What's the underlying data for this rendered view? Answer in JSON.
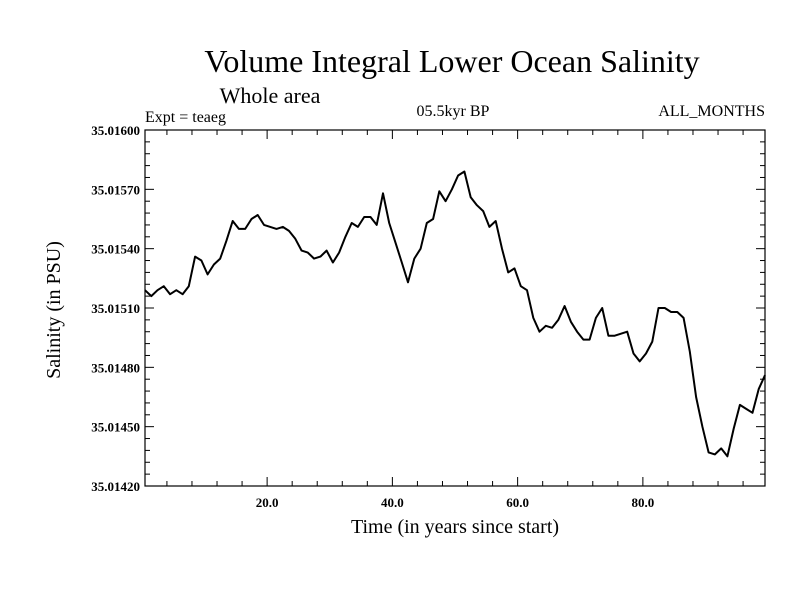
{
  "chart_data": {
    "type": "line",
    "title": "Volume Integral Lower Ocean Salinity",
    "subtitle": "Whole area",
    "experiment": "Expt = teaeg",
    "period": "05.5kyr BP",
    "months": "ALL_MONTHS",
    "xlabel": "Time (in years since start)",
    "ylabel": "Salinity (in PSU)",
    "xlim": [
      0.5,
      99.5
    ],
    "ylim": [
      35.0142,
      35.016
    ],
    "x_ticks": [
      20,
      40,
      60,
      80
    ],
    "x_tick_labels": [
      "20.0",
      "40.0",
      "60.0",
      "80.0"
    ],
    "y_ticks": [
      35.0142,
      35.0145,
      35.0148,
      35.0151,
      35.0154,
      35.0157,
      35.016
    ],
    "y_tick_labels": [
      "35.01420",
      "35.01450",
      "35.01480",
      "35.01510",
      "35.01540",
      "35.01570",
      "35.01600"
    ],
    "series": [
      {
        "name": "Salinity",
        "x": [
          0.5,
          1.5,
          2.5,
          3.5,
          4.5,
          5.5,
          6.5,
          7.5,
          8.5,
          9.5,
          10.5,
          11.5,
          12.5,
          13.5,
          14.5,
          15.5,
          16.5,
          17.5,
          18.5,
          19.5,
          20.5,
          21.5,
          22.5,
          23.5,
          24.5,
          25.5,
          26.5,
          27.5,
          28.5,
          29.5,
          30.5,
          31.5,
          32.5,
          33.5,
          34.5,
          35.5,
          36.5,
          37.5,
          38.5,
          39.5,
          40.5,
          41.5,
          42.5,
          43.5,
          44.5,
          45.5,
          46.5,
          47.5,
          48.5,
          49.5,
          50.5,
          51.5,
          52.5,
          53.5,
          54.5,
          55.5,
          56.5,
          57.5,
          58.5,
          59.5,
          60.5,
          61.5,
          62.5,
          63.5,
          64.5,
          65.5,
          66.5,
          67.5,
          68.5,
          69.5,
          70.5,
          71.5,
          72.5,
          73.5,
          74.5,
          75.5,
          76.5,
          77.5,
          78.5,
          79.5,
          80.5,
          81.5,
          82.5,
          83.5,
          84.5,
          85.5,
          86.5,
          87.5,
          88.5,
          89.5,
          90.5,
          91.5,
          92.5,
          93.5,
          94.5,
          95.5,
          96.5,
          97.5,
          98.5,
          99.5
        ],
        "values": [
          35.01519,
          35.01516,
          35.01519,
          35.01521,
          35.01517,
          35.01519,
          35.01517,
          35.01521,
          35.01536,
          35.01534,
          35.01527,
          35.01532,
          35.01535,
          35.01544,
          35.01554,
          35.0155,
          35.0155,
          35.01555,
          35.01557,
          35.01552,
          35.01551,
          35.0155,
          35.01551,
          35.01549,
          35.01545,
          35.01539,
          35.01538,
          35.01535,
          35.01536,
          35.01539,
          35.01533,
          35.01538,
          35.01546,
          35.01553,
          35.01551,
          35.01556,
          35.01556,
          35.01552,
          35.01568,
          35.01553,
          35.01543,
          35.01533,
          35.01523,
          35.01535,
          35.0154,
          35.01553,
          35.01555,
          35.01569,
          35.01564,
          35.0157,
          35.01577,
          35.01579,
          35.01566,
          35.01562,
          35.01559,
          35.01551,
          35.01554,
          35.0154,
          35.01528,
          35.0153,
          35.01521,
          35.01519,
          35.01505,
          35.01498,
          35.01501,
          35.015,
          35.01504,
          35.01511,
          35.01503,
          35.01498,
          35.01494,
          35.01494,
          35.01505,
          35.0151,
          35.01496,
          35.01496,
          35.01497,
          35.01498,
          35.01487,
          35.01483,
          35.01487,
          35.01493,
          35.0151,
          35.0151,
          35.01508,
          35.01508,
          35.01505,
          35.01488,
          35.01465,
          35.0145,
          35.01437,
          35.01436,
          35.01439,
          35.01435,
          35.01449,
          35.01461,
          35.01459,
          35.01457,
          35.01469,
          35.01476
        ]
      }
    ]
  }
}
